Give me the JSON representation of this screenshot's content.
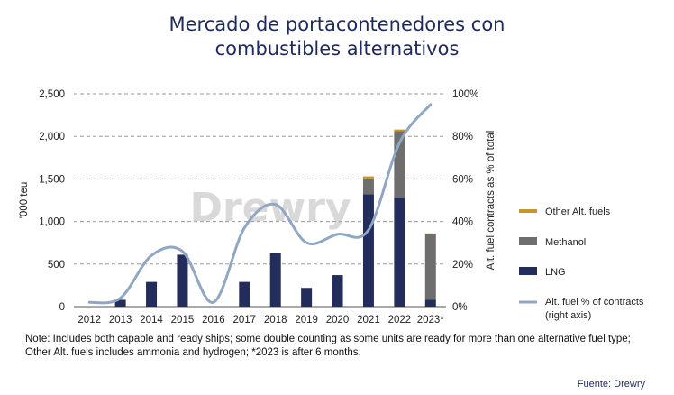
{
  "title_lines": [
    "Mercado de portacontenedores con",
    "combustibles alternativos"
  ],
  "watermark": "Drewry",
  "note": "Note: Includes both capable and ready ships; some double counting as some units are ready for more than one alternative fuel type; Other Alt. fuels includes ammonia and hydrogen; *2023 is after 6 months.",
  "source": "Fuente: Drewry",
  "colors": {
    "lng": "#232d5c",
    "methanol": "#6e6e6e",
    "other": "#c8962a",
    "line": "#8fa7c4",
    "grid": "#9a9a9a"
  },
  "chart_data": {
    "type": "bar",
    "stacked": true,
    "categories": [
      "2012",
      "2013",
      "2014",
      "2015",
      "2016",
      "2017",
      "2018",
      "2019",
      "2020",
      "2021",
      "2022",
      "2023*"
    ],
    "series": [
      {
        "name": "LNG",
        "values": [
          0,
          80,
          290,
          610,
          0,
          290,
          630,
          220,
          370,
          1320,
          1280,
          80
        ]
      },
      {
        "name": "Methanol",
        "values": [
          0,
          0,
          0,
          0,
          0,
          0,
          0,
          0,
          0,
          180,
          780,
          770
        ]
      },
      {
        "name": "Other Alt. fuels",
        "values": [
          0,
          0,
          0,
          0,
          0,
          0,
          0,
          0,
          0,
          30,
          20,
          10
        ]
      }
    ],
    "line_series": {
      "name": "Alt. fuel % of contracts",
      "name_line2": "(right axis)",
      "axis": "right",
      "values": [
        2,
        4,
        24,
        26,
        2,
        37,
        48,
        30,
        34,
        36,
        77,
        95
      ]
    },
    "ylabel": "'000 teu",
    "y2label": "Alt. fuel contracts as % of total",
    "ylim": [
      0,
      2500
    ],
    "yticks": [
      "0",
      "500",
      "1,000",
      "1,500",
      "2,000",
      "2,500"
    ],
    "y2lim": [
      0,
      100
    ],
    "y2ticks": [
      "0%",
      "20%",
      "40%",
      "60%",
      "80%",
      "100%"
    ],
    "legend": [
      "Other Alt. fuels",
      "Methanol",
      "LNG",
      "Alt. fuel % of contracts",
      "(right axis)"
    ],
    "grid": true,
    "legend_position": "right"
  }
}
